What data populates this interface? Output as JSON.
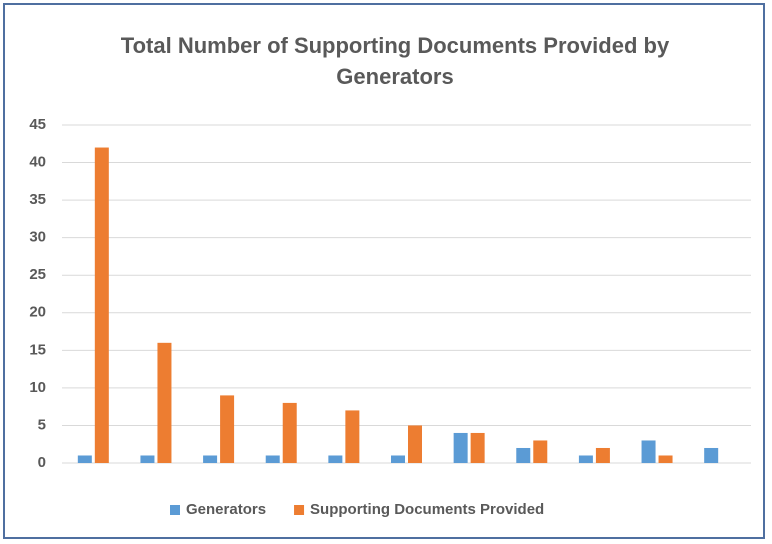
{
  "chart_data": {
    "type": "bar",
    "title": "Total Number of Supporting Documents Provided by Generators",
    "categories": [
      null,
      null,
      null,
      null,
      null,
      null,
      null,
      null,
      null,
      null,
      null
    ],
    "series": [
      {
        "name": "Generators",
        "color": "#5b9bd5",
        "values": [
          1,
          1,
          1,
          1,
          1,
          1,
          4,
          2,
          1,
          3,
          2
        ]
      },
      {
        "name": "Supporting Documents Provided",
        "color": "#ed7d31",
        "values": [
          42,
          16,
          9,
          8,
          7,
          5,
          4,
          3,
          2,
          1,
          0
        ]
      }
    ],
    "ylim": [
      0,
      45
    ],
    "yticks": [
      0,
      5,
      10,
      15,
      20,
      25,
      30,
      35,
      40,
      45
    ],
    "grid": true,
    "legend": "bottom"
  }
}
